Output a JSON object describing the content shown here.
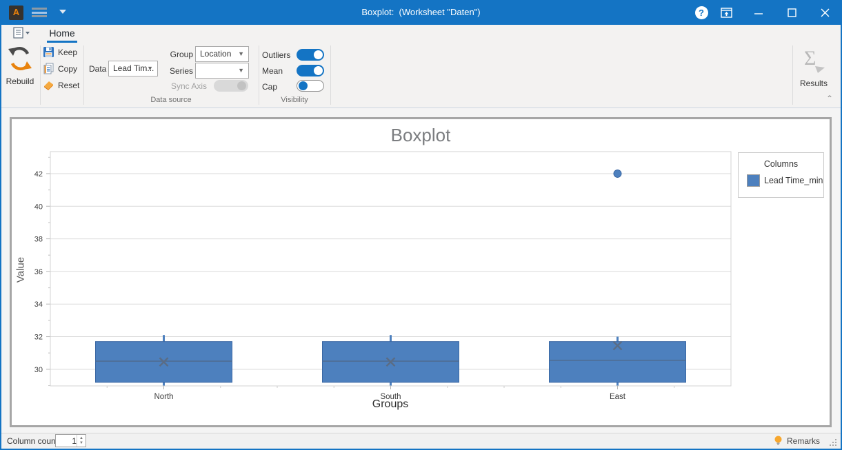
{
  "titlebar": {
    "title": "Boxplot:  (Worksheet \"Daten\")",
    "help_glyph": "?"
  },
  "ribbon": {
    "tab": "Home",
    "rebuild": "Rebuild",
    "keep": "Keep",
    "copy": "Copy",
    "reset": "Reset",
    "data_label": "Data",
    "data_value": "Lead Tim...",
    "group_label": "Group",
    "group_value": "Location",
    "series_label": "Series",
    "series_value": "",
    "sync_axis_label": "Sync Axis",
    "outliers_label": "Outliers",
    "mean_label": "Mean",
    "cap_label": "Cap",
    "toggles": {
      "outliers": true,
      "mean": true,
      "cap": false,
      "sync_axis": false
    },
    "captions": {
      "data_source": "Data source",
      "visibility": "Visibility"
    },
    "results": "Results"
  },
  "chart_data": {
    "type": "boxplot",
    "title": "Boxplot",
    "xlabel": "Groups",
    "ylabel": "Value",
    "categories": [
      "North",
      "South",
      "East"
    ],
    "ylim": [
      28.98,
      43.35
    ],
    "yticks": [
      30,
      32,
      34,
      36,
      38,
      40,
      42
    ],
    "grid": true,
    "boxes": [
      {
        "category": "North",
        "whisker_low": 29.0,
        "q1": 29.2,
        "median": 30.5,
        "q3": 31.7,
        "whisker_high": 32.1,
        "mean": 30.45,
        "outliers": []
      },
      {
        "category": "South",
        "whisker_low": 29.0,
        "q1": 29.2,
        "median": 30.5,
        "q3": 31.7,
        "whisker_high": 32.1,
        "mean": 30.45,
        "outliers": []
      },
      {
        "category": "East",
        "whisker_low": 29.0,
        "q1": 29.2,
        "median": 30.55,
        "q3": 31.7,
        "whisker_high": 32.0,
        "mean": 31.45,
        "outliers": [
          42
        ]
      }
    ],
    "legend": {
      "title": "Columns",
      "entries": [
        "Lead Time_min"
      ],
      "position": "right"
    },
    "colors": {
      "box_fill": "#4d80be",
      "box_stroke": "#3a67a3",
      "median": "#4f6d93",
      "mean_marker": "#5a6c85",
      "grid": "#d9d9d9",
      "axis_text": "#3f3f3f"
    }
  },
  "statusbar": {
    "column_count_label": "Column count",
    "column_count_value": "1",
    "remarks": "Remarks"
  }
}
